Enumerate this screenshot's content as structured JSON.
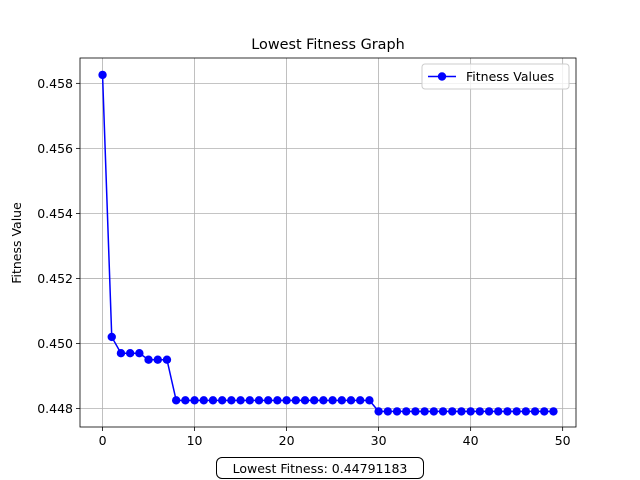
{
  "chart_data": {
    "type": "line",
    "title": "Lowest Fitness Graph",
    "xlabel": "",
    "ylabel": "Fitness Value",
    "xlim": [
      -2.45,
      51.45
    ],
    "ylim": [
      0.44743,
      0.45878
    ],
    "xticks": [
      0,
      10,
      20,
      30,
      40,
      50
    ],
    "yticks": [
      0.448,
      0.45,
      0.452,
      0.454,
      0.456,
      0.458
    ],
    "ytick_labels": [
      "0.448",
      "0.450",
      "0.452",
      "0.454",
      "0.456",
      "0.458"
    ],
    "grid": true,
    "legend_position": "top-right",
    "series": [
      {
        "name": "Fitness Values",
        "color": "#0000ff",
        "marker": "circle",
        "x": [
          0,
          1,
          2,
          3,
          4,
          5,
          6,
          7,
          8,
          9,
          10,
          11,
          12,
          13,
          14,
          15,
          16,
          17,
          18,
          19,
          20,
          21,
          22,
          23,
          24,
          25,
          26,
          27,
          28,
          29,
          30,
          31,
          32,
          33,
          34,
          35,
          36,
          37,
          38,
          39,
          40,
          41,
          42,
          43,
          44,
          45,
          46,
          47,
          48,
          49
        ],
        "values": [
          0.45826,
          0.4502,
          0.4497,
          0.4497,
          0.4497,
          0.4495,
          0.4495,
          0.4495,
          0.44825,
          0.44825,
          0.44825,
          0.44825,
          0.44825,
          0.44825,
          0.44825,
          0.44825,
          0.44825,
          0.44825,
          0.44825,
          0.44825,
          0.44825,
          0.44825,
          0.44825,
          0.44825,
          0.44825,
          0.44825,
          0.44825,
          0.44825,
          0.44825,
          0.44825,
          0.44791,
          0.44791,
          0.44791,
          0.44791,
          0.44791,
          0.44791,
          0.44791,
          0.44791,
          0.44791,
          0.44791,
          0.44791,
          0.44791,
          0.44791,
          0.44791,
          0.44791,
          0.44791,
          0.44791,
          0.44791,
          0.44791,
          0.44791
        ]
      }
    ]
  },
  "footer": {
    "lowest_fitness_text": "Lowest Fitness: 0.44791183"
  }
}
